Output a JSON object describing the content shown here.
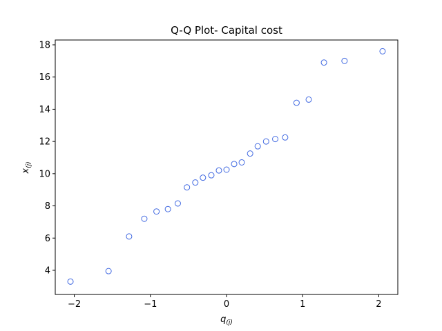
{
  "chart_data": {
    "type": "scatter",
    "title": "Q-Q Plot- Capital cost",
    "xlabel": {
      "base": "q",
      "subscript": "(j)"
    },
    "ylabel": {
      "base": "x",
      "subscript": "(j)"
    },
    "xlim": [
      -2.25,
      2.25
    ],
    "ylim": [
      2.5,
      18.3
    ],
    "xticks": [
      -2,
      -1,
      0,
      1,
      2
    ],
    "xtick_labels": [
      "−2",
      "−1",
      "0",
      "1",
      "2"
    ],
    "yticks": [
      4,
      6,
      8,
      10,
      12,
      14,
      16,
      18
    ],
    "ytick_labels": [
      "4",
      "6",
      "8",
      "10",
      "12",
      "14",
      "16",
      "18"
    ],
    "grid": false,
    "marker_color": "#4169e1",
    "series": [
      {
        "x": [
          -2.05,
          -1.55,
          -1.28,
          -1.08,
          -0.92,
          -0.77,
          -0.64,
          -0.52,
          -0.41,
          -0.31,
          -0.2,
          -0.1,
          0.0,
          0.1,
          0.2,
          0.31,
          0.41,
          0.52,
          0.64,
          0.77,
          0.92,
          1.08,
          1.28,
          1.55,
          2.05
        ],
        "y": [
          3.3,
          3.95,
          6.1,
          7.2,
          7.65,
          7.8,
          8.15,
          9.15,
          9.45,
          9.75,
          9.9,
          10.2,
          10.25,
          10.6,
          10.7,
          11.25,
          11.7,
          12.0,
          12.15,
          12.25,
          14.4,
          14.6,
          16.9,
          17.0,
          17.6
        ]
      }
    ]
  }
}
